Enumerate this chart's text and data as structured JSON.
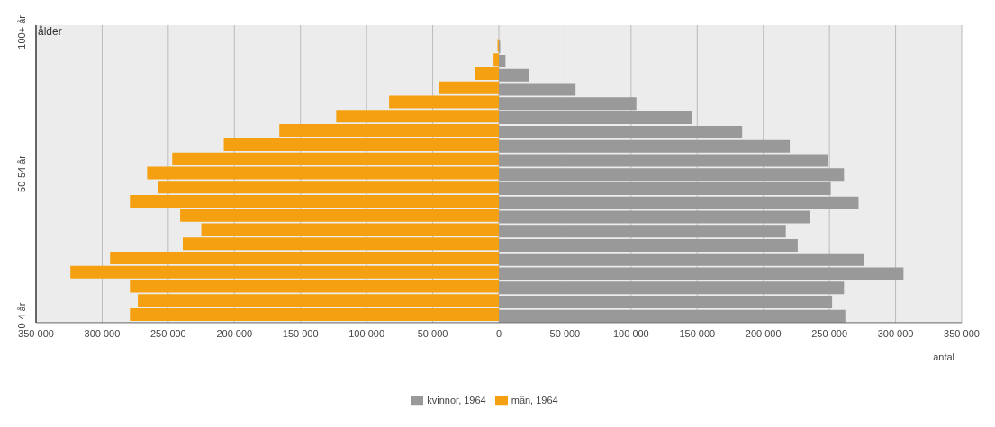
{
  "chart_data": {
    "type": "bar",
    "orientation": "horizontal",
    "ylabel": "ålder",
    "xlabel": "antal",
    "categories": [
      "100+ år",
      null,
      null,
      null,
      null,
      null,
      null,
      null,
      null,
      null,
      "50-54 år",
      null,
      null,
      null,
      null,
      null,
      null,
      null,
      null,
      null,
      "0-4 år"
    ],
    "series": [
      {
        "name": "kvinnor, 1964",
        "color": "#999999",
        "values": [
          0,
          1000,
          5000,
          23000,
          58000,
          104000,
          146000,
          184000,
          220000,
          249000,
          261000,
          251000,
          272000,
          235000,
          217000,
          226000,
          276000,
          306000,
          261000,
          252000,
          262000
        ]
      },
      {
        "name": "män, 1964",
        "color": "#f5a011",
        "values": [
          0,
          -1000,
          -4000,
          -18000,
          -45000,
          -83000,
          -123000,
          -166000,
          -208000,
          -247000,
          -266000,
          -258000,
          -279000,
          -241000,
          -225000,
          -239000,
          -294000,
          -324000,
          -279000,
          -273000,
          -279000
        ]
      }
    ],
    "xlim": [
      -350000,
      350000
    ],
    "xticks": [
      {
        "value": -350000,
        "label": "350 000"
      },
      {
        "value": -300000,
        "label": "300 000"
      },
      {
        "value": -250000,
        "label": "250 000"
      },
      {
        "value": -200000,
        "label": "200 000"
      },
      {
        "value": -150000,
        "label": "150 000"
      },
      {
        "value": -100000,
        "label": "100 000"
      },
      {
        "value": -50000,
        "label": "50 000"
      },
      0,
      {
        "value": 50000,
        "label": "50 000"
      },
      {
        "value": 100000,
        "label": "100 000"
      },
      {
        "value": 150000,
        "label": "150 000"
      },
      {
        "value": 200000,
        "label": "200 000"
      },
      {
        "value": 250000,
        "label": "250 000"
      },
      {
        "value": 300000,
        "label": "300 000"
      },
      {
        "value": 350000,
        "label": "350 000"
      }
    ],
    "grid": "x",
    "legend": "bottom"
  }
}
